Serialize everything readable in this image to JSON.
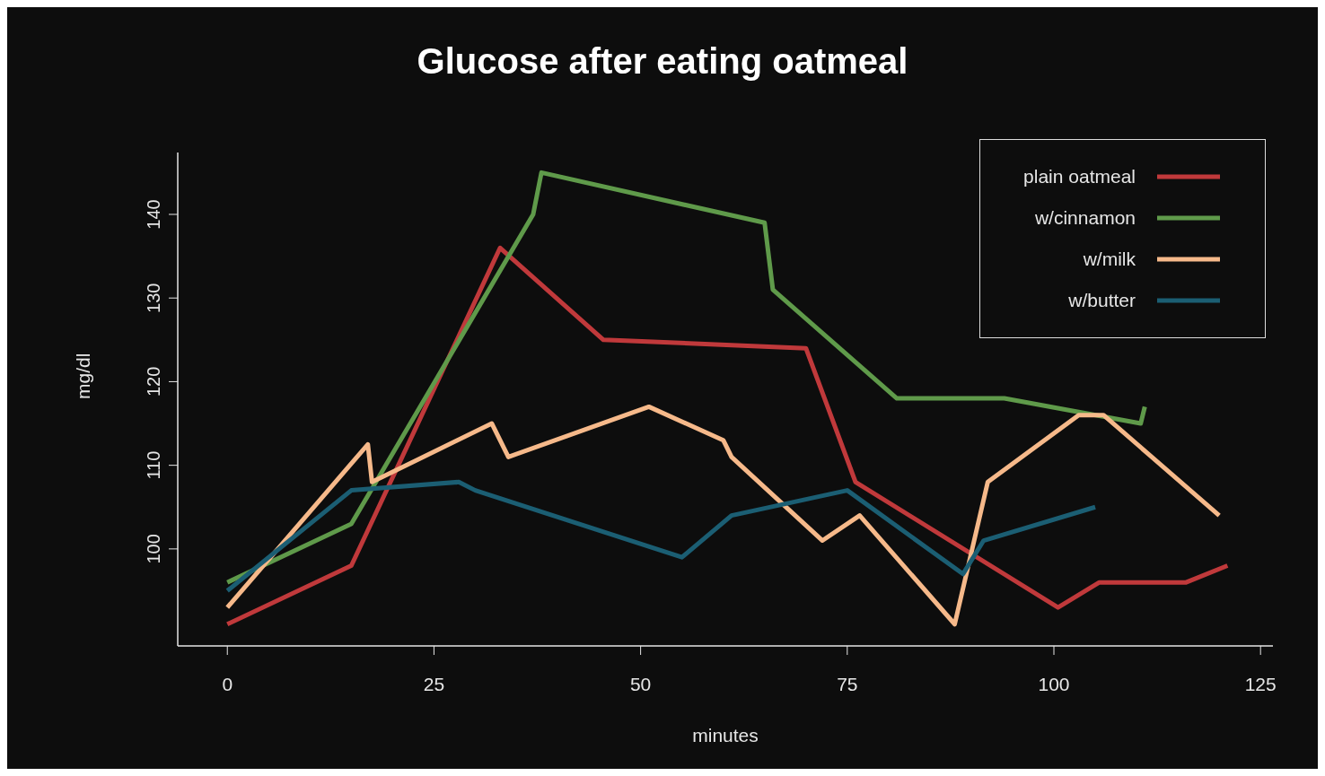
{
  "chart_data": {
    "type": "line",
    "title": "Glucose after eating oatmeal",
    "xlabel": "minutes",
    "ylabel": "mg/dl",
    "xlim": [
      -6,
      126.5
    ],
    "xticks": [
      0,
      25,
      50,
      75,
      100,
      125
    ],
    "ylim": [
      88.4,
      147.4
    ],
    "yticks": [
      100,
      110,
      120,
      130,
      140
    ],
    "legend": "top right",
    "grid": false,
    "marker": "none",
    "line_style": "solid",
    "series": [
      {
        "name": "plain oatmeal",
        "color": "#c0393b",
        "x": [
          0,
          15,
          33,
          45.5,
          70,
          76,
          100.5,
          105.5,
          116,
          121
        ],
        "values": [
          91,
          98,
          136,
          125,
          124,
          108,
          93,
          96,
          96,
          98
        ]
      },
      {
        "name": "w/cinnamon",
        "color": "#5f9a4a",
        "x": [
          0,
          15,
          37,
          38,
          65,
          66,
          81,
          94,
          110.5,
          111
        ],
        "values": [
          96,
          103,
          140,
          145,
          139,
          131,
          118,
          118,
          115,
          117
        ]
      },
      {
        "name": "w/milk",
        "color": "#f6b98a",
        "x": [
          0,
          17,
          17.5,
          32,
          34,
          51,
          60,
          61,
          72,
          76.5,
          88,
          92,
          103,
          106,
          120
        ],
        "values": [
          93,
          112.5,
          108,
          115,
          111,
          117,
          113,
          111,
          101,
          104,
          91,
          108,
          116,
          116,
          104
        ]
      },
      {
        "name": "w/butter",
        "color": "#1b5e73",
        "x": [
          0,
          15,
          28,
          30,
          55,
          61,
          75,
          89,
          91.5,
          105
        ],
        "values": [
          95,
          107,
          108,
          107,
          99,
          104,
          107,
          97,
          101,
          105
        ]
      }
    ]
  }
}
